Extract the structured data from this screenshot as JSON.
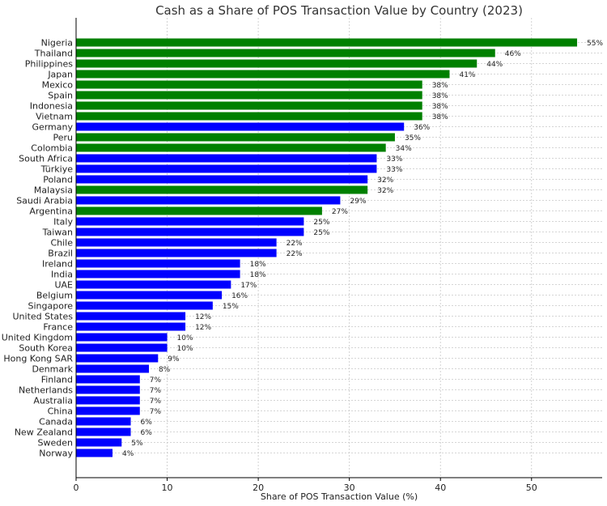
{
  "chart_data": {
    "type": "bar",
    "orientation": "horizontal",
    "title": "Cash as a Share of POS Transaction Value by Country (2023)",
    "xlabel": "Share of POS Transaction Value (%)",
    "ylabel": "",
    "xlim": [
      0,
      57.75
    ],
    "xticks": [
      0,
      10,
      20,
      30,
      40,
      50
    ],
    "grid": true,
    "value_suffix": "%",
    "colors": {
      "green": "#008000",
      "blue": "#0000ff"
    },
    "categories": [
      "Nigeria",
      "Thailand",
      "Philippines",
      "Japan",
      "Mexico",
      "Spain",
      "Indonesia",
      "Vietnam",
      "Germany",
      "Peru",
      "Colombia",
      "South Africa",
      "Türkiye",
      "Poland",
      "Malaysia",
      "Saudi Arabia",
      "Argentina",
      "Italy",
      "Taiwan",
      "Chile",
      "Brazil",
      "Ireland",
      "India",
      "UAE",
      "Belgium",
      "Singapore",
      "United States",
      "France",
      "United Kingdom",
      "South Korea",
      "Hong Kong SAR",
      "Denmark",
      "Finland",
      "Netherlands",
      "Australia",
      "China",
      "Canada",
      "New Zealand",
      "Sweden",
      "Norway"
    ],
    "values": [
      55,
      46,
      44,
      41,
      38,
      38,
      38,
      38,
      36,
      35,
      34,
      33,
      33,
      32,
      32,
      29,
      27,
      25,
      25,
      22,
      22,
      18,
      18,
      17,
      16,
      15,
      12,
      12,
      10,
      10,
      9,
      8,
      7,
      7,
      7,
      7,
      6,
      6,
      5,
      4
    ],
    "bar_colors": [
      "green",
      "green",
      "green",
      "green",
      "green",
      "green",
      "green",
      "green",
      "blue",
      "green",
      "green",
      "blue",
      "blue",
      "blue",
      "green",
      "blue",
      "green",
      "blue",
      "blue",
      "blue",
      "blue",
      "blue",
      "blue",
      "blue",
      "blue",
      "blue",
      "blue",
      "blue",
      "blue",
      "blue",
      "blue",
      "blue",
      "blue",
      "blue",
      "blue",
      "blue",
      "blue",
      "blue",
      "blue",
      "blue"
    ]
  }
}
